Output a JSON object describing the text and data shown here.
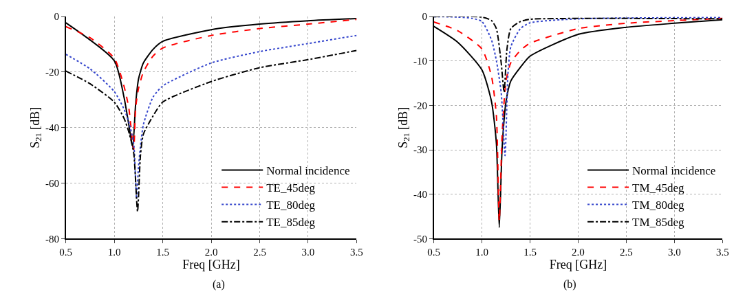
{
  "chart_data": [
    {
      "type": "line",
      "xlabel": "Freq [GHz]",
      "ylabel": "S$_{21}$ [dB]",
      "annotations": [
        "(a)"
      ],
      "xlim": [
        0.5,
        3.5
      ],
      "xticks": [
        {
          "value": 0.5,
          "label": "0.5"
        },
        {
          "value": 1.0,
          "label": "1.0"
        },
        {
          "value": 1.5,
          "label": "1.5"
        },
        {
          "value": 2.0,
          "label": "2.0"
        },
        {
          "value": 2.5,
          "label": "2.5"
        },
        {
          "value": 3.0,
          "label": "3.0"
        },
        {
          "value": 3.5,
          "label": "3.5"
        }
      ],
      "ylim": [
        -80,
        0
      ],
      "yticks": [
        -80,
        -60,
        -40,
        -20,
        0
      ],
      "grid": true,
      "legend": "bottom right",
      "series": [
        {
          "name": "Normal incidence",
          "color": "#000000",
          "line_style": "solid",
          "x": [
            0.5,
            1.0,
            1.1,
            1.15,
            1.19,
            1.22,
            1.25,
            1.3,
            1.4,
            1.5,
            2.0,
            2.5,
            3.0,
            3.5
          ],
          "values": [
            -2.2,
            -15.9,
            -29,
            -39,
            -47,
            -31.6,
            -22.5,
            -16.7,
            -11.8,
            -8.9,
            -4.7,
            -2.7,
            -1.5,
            -0.7
          ]
        },
        {
          "name": "TE_45deg",
          "color": "#ff0000",
          "line_style": "dashed",
          "x": [
            0.5,
            0.75,
            1.0,
            1.1,
            1.15,
            1.2,
            1.22,
            1.25,
            1.3,
            1.4,
            1.5,
            2.0,
            2.5,
            3.0,
            3.5
          ],
          "values": [
            -3.6,
            -7.6,
            -15,
            -25,
            -33,
            -48,
            -33,
            -25.9,
            -20,
            -14.2,
            -11.3,
            -6.8,
            -4.3,
            -2.7,
            -1
          ]
        },
        {
          "name": "TE_80deg",
          "color": "#3344cc",
          "line_style": "dotted",
          "x": [
            0.5,
            0.75,
            1.0,
            1.1,
            1.15,
            1.2,
            1.23,
            1.25,
            1.3,
            1.4,
            1.5,
            2.0,
            2.5,
            3.0,
            3.5
          ],
          "values": [
            -13.6,
            -18.8,
            -27,
            -33.3,
            -38,
            -45.7,
            -65.6,
            -54,
            -39,
            -29,
            -25,
            -16.7,
            -12.6,
            -9.7,
            -6.8
          ]
        },
        {
          "name": "TE_85deg",
          "color": "#000000",
          "line_style": "dashdot",
          "x": [
            0.5,
            0.75,
            1.0,
            1.1,
            1.15,
            1.2,
            1.24,
            1.27,
            1.3,
            1.4,
            1.5,
            2.0,
            2.5,
            3.0,
            3.5
          ],
          "values": [
            -19.6,
            -24.2,
            -30.8,
            -36.6,
            -41.6,
            -49,
            -70.2,
            -50,
            -42.4,
            -35.8,
            -30.8,
            -23.4,
            -18.4,
            -15.5,
            -12.2
          ]
        }
      ]
    },
    {
      "type": "line",
      "xlabel": "Freq [GHz]",
      "ylabel": "S$_{21}$ [dB]",
      "annotations": [
        "(b)"
      ],
      "xlim": [
        0.5,
        3.5
      ],
      "xticks": [
        {
          "value": 0.5,
          "label": "0.5"
        },
        {
          "value": 1.0,
          "label": "1.0"
        },
        {
          "value": 1.5,
          "label": "1.5"
        },
        {
          "value": 2.0,
          "label": "2.0"
        },
        {
          "value": 2.5,
          "label": "2.5"
        },
        {
          "value": 3.0,
          "label": "3.0"
        },
        {
          "value": 3.5,
          "label": "3.5"
        }
      ],
      "ylim": [
        -50,
        0
      ],
      "yticks": [
        -50,
        -40,
        -30,
        -20,
        -10,
        0
      ],
      "grid": true,
      "legend": "bottom right",
      "series": [
        {
          "name": "Normal incidence",
          "color": "#000000",
          "line_style": "solid",
          "x": [
            0.5,
            0.75,
            1.0,
            1.1,
            1.15,
            1.18,
            1.21,
            1.25,
            1.3,
            1.4,
            1.5,
            2.0,
            2.5,
            3.0,
            3.5
          ],
          "values": [
            -2.2,
            -5.8,
            -12,
            -19.2,
            -28.5,
            -47.5,
            -29.5,
            -19.2,
            -14.5,
            -11.4,
            -8.9,
            -4,
            -2.4,
            -1.5,
            -0.7
          ]
        },
        {
          "name": "TM_45deg",
          "color": "#ff0000",
          "line_style": "dashed",
          "x": [
            0.5,
            0.75,
            1.0,
            1.1,
            1.15,
            1.18,
            1.21,
            1.25,
            1.3,
            1.4,
            1.5,
            2.0,
            2.5,
            3.0,
            3.5
          ],
          "values": [
            -1.2,
            -3.2,
            -7.3,
            -13.5,
            -22.3,
            -46,
            -26.4,
            -14.5,
            -10.4,
            -7.6,
            -6,
            -2.7,
            -1.5,
            -0.9,
            -0.4
          ]
        },
        {
          "name": "TM_80deg",
          "color": "#3344cc",
          "line_style": "dotted",
          "x": [
            0.5,
            0.75,
            0.9,
            1.0,
            1.1,
            1.15,
            1.2,
            1.24,
            1.27,
            1.3,
            1.4,
            1.5,
            2.0,
            3.5
          ],
          "values": [
            0,
            -0.1,
            -0.4,
            -1.1,
            -5.3,
            -9.9,
            -17.1,
            -31.3,
            -13,
            -6.8,
            -2.7,
            -1.4,
            -0.5,
            -0.2
          ]
        },
        {
          "name": "TM_85deg",
          "color": "#000000",
          "line_style": "dashdot",
          "x": [
            0.5,
            1.0,
            1.1,
            1.15,
            1.2,
            1.23,
            1.26,
            1.3,
            1.4,
            1.5,
            2.0,
            3.5
          ],
          "values": [
            0,
            -0.1,
            -0.9,
            -2.7,
            -10.4,
            -17,
            -7.3,
            -2.7,
            -1.1,
            -0.6,
            -0.4,
            -0.5
          ]
        }
      ]
    }
  ]
}
